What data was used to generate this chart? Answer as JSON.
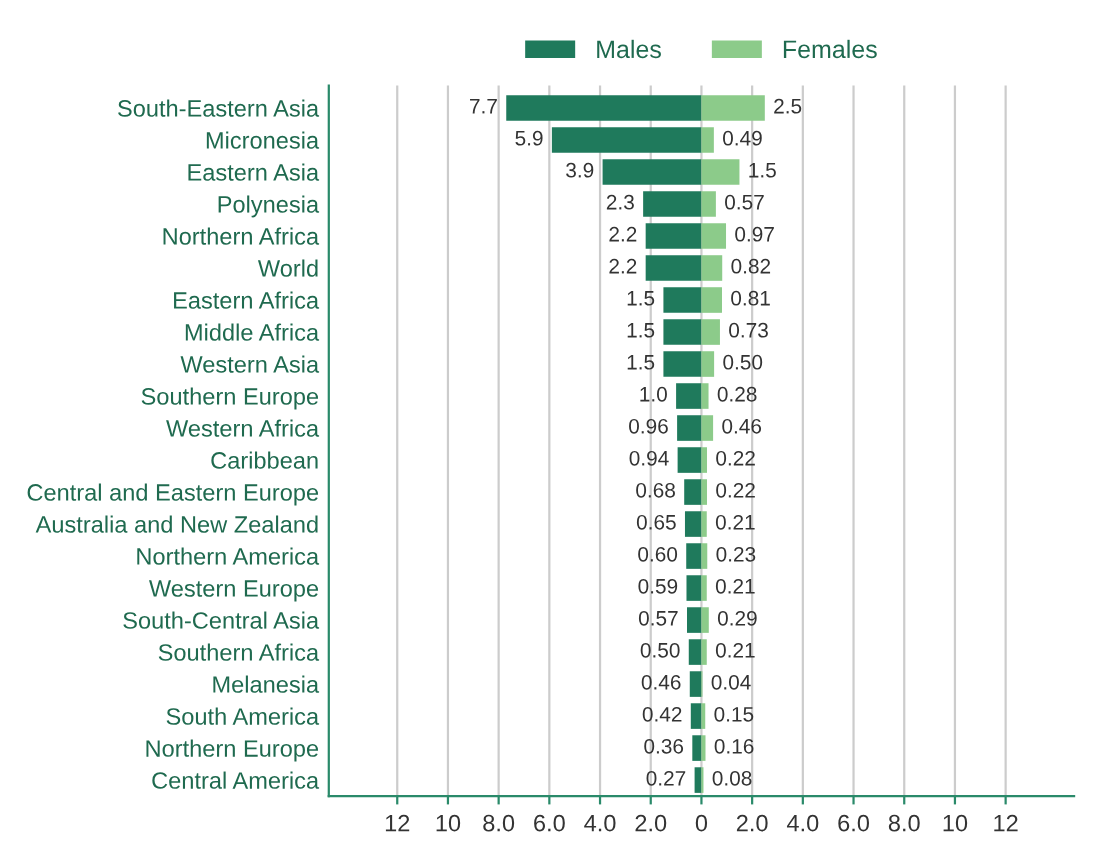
{
  "chart_data": {
    "type": "bar",
    "orientation": "horizontal",
    "legend": "top",
    "grid": "x",
    "categories": [
      "South-Eastern Asia",
      "Micronesia",
      "Eastern Asia",
      "Polynesia",
      "Northern Africa",
      "World",
      "Eastern Africa",
      "Middle Africa",
      "Western Asia",
      "Southern Europe",
      "Western Africa",
      "Caribbean",
      "Central and Eastern Europe",
      "Australia and New Zealand",
      "Northern America",
      "Western Europe",
      "South-Central Asia",
      "Southern Africa",
      "Melanesia",
      "South America",
      "Northern Europe",
      "Central America"
    ],
    "series": [
      {
        "name": "Males",
        "color": "#1f7a5c",
        "values": [
          7.7,
          5.9,
          3.9,
          2.3,
          2.2,
          2.2,
          1.5,
          1.5,
          1.5,
          1.0,
          0.96,
          0.94,
          0.68,
          0.65,
          0.6,
          0.59,
          0.57,
          0.5,
          0.46,
          0.42,
          0.36,
          0.27
        ],
        "base": [
          -7.7,
          -5.9,
          -3.9,
          -2.3,
          -2.2,
          -2.2,
          -1.5,
          -1.5,
          -1.5,
          -1.0,
          -0.96,
          -0.94,
          -0.68,
          -0.65,
          -0.6,
          -0.59,
          -0.57,
          -0.5,
          -0.46,
          -0.42,
          -0.36,
          -0.27
        ],
        "value_labels": [
          "7.7",
          "5.9",
          "3.9",
          "2.3",
          "2.2",
          "2.2",
          "1.5",
          "1.5",
          "1.5",
          "1.0",
          "0.96",
          "0.94",
          "0.68",
          "0.65",
          "0.60",
          "0.59",
          "0.57",
          "0.50",
          "0.46",
          "0.42",
          "0.36",
          "0.27"
        ]
      },
      {
        "name": "Females",
        "color": "#8ccb8a",
        "values": [
          2.5,
          0.49,
          1.5,
          0.57,
          0.97,
          0.82,
          0.81,
          0.73,
          0.5,
          0.28,
          0.46,
          0.22,
          0.22,
          0.21,
          0.23,
          0.21,
          0.29,
          0.21,
          0.04,
          0.15,
          0.16,
          0.08
        ],
        "value_labels": [
          "2.5",
          "0.49",
          "1.5",
          "0.57",
          "0.97",
          "0.82",
          "0.81",
          "0.73",
          "0.50",
          "0.28",
          "0.46",
          "0.22",
          "0.22",
          "0.21",
          "0.23",
          "0.21",
          "0.29",
          "0.21",
          "0.04",
          "0.15",
          "0.16",
          "0.08"
        ]
      }
    ],
    "xlim": [
      -14.7,
      14.7
    ],
    "xticks": [
      {
        "value": -12,
        "label": "12"
      },
      {
        "value": -10,
        "label": "10"
      },
      {
        "value": -8,
        "label": "8.0"
      },
      {
        "value": -6,
        "label": "6.0"
      },
      {
        "value": -4,
        "label": "4.0"
      },
      {
        "value": -2,
        "label": "2.0"
      },
      0,
      {
        "value": 2,
        "label": "2.0"
      },
      {
        "value": 4,
        "label": "4.0"
      },
      {
        "value": 6,
        "label": "6.0"
      },
      {
        "value": 8,
        "label": "8.0"
      },
      {
        "value": 10,
        "label": "10"
      },
      {
        "value": 12,
        "label": "12"
      }
    ]
  }
}
